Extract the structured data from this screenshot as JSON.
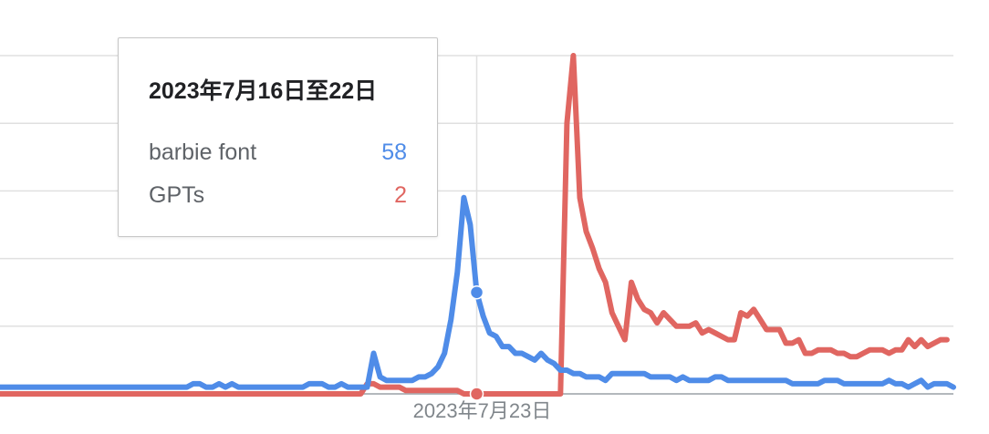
{
  "colors": {
    "background": "#ffffff",
    "gridline": "#e0e0e0",
    "axis": "#9aa0a6",
    "series_blue": "#4f8ce8",
    "series_red": "#e06661",
    "tooltip_border": "#c6c6c6",
    "tooltip_title": "#202124",
    "tooltip_text": "#5f6368"
  },
  "tooltip": {
    "title": "2023年7月16日至22日",
    "rows": [
      {
        "name": "barbie font",
        "value": "58",
        "color": "#4f8ce8"
      },
      {
        "name": "GPTs",
        "value": "2",
        "color": "#e06661"
      }
    ]
  },
  "chart_data": {
    "type": "line",
    "title": "",
    "xlabel": "",
    "ylabel": "",
    "x_tick_labels": [
      "2023年7月23日"
    ],
    "x_tick_index": 74,
    "ylim": [
      0,
      100
    ],
    "y_gridlines": [
      20,
      40,
      60,
      80,
      100
    ],
    "grid": true,
    "highlight_index": 74,
    "series": [
      {
        "name": "barbie font",
        "color": "#4f8ce8",
        "values": [
          2,
          2,
          2,
          2,
          2,
          2,
          2,
          2,
          2,
          2,
          2,
          2,
          2,
          2,
          2,
          2,
          2,
          2,
          2,
          2,
          2,
          2,
          2,
          2,
          2,
          2,
          2,
          2,
          2,
          2,
          3,
          3,
          2,
          2,
          3,
          2,
          3,
          2,
          2,
          2,
          2,
          2,
          2,
          2,
          2,
          2,
          2,
          2,
          3,
          3,
          3,
          2,
          2,
          3,
          2,
          2,
          2,
          2,
          12,
          5,
          4,
          4,
          4,
          4,
          4,
          5,
          5,
          6,
          8,
          12,
          22,
          36,
          58,
          50,
          30,
          23,
          18,
          17,
          14,
          14,
          12,
          12,
          11,
          10,
          12,
          10,
          9,
          7,
          7,
          6,
          6,
          5,
          5,
          5,
          4,
          6,
          6,
          6,
          6,
          6,
          6,
          5,
          5,
          5,
          5,
          4,
          5,
          4,
          4,
          4,
          4,
          5,
          5,
          4,
          4,
          4,
          4,
          4,
          4,
          4,
          4,
          4,
          4,
          3,
          3,
          3,
          3,
          3,
          4,
          4,
          4,
          3,
          3,
          3,
          3,
          3,
          3,
          3,
          4,
          3,
          3,
          2,
          3,
          4,
          2,
          3,
          3,
          3,
          2
        ]
      },
      {
        "name": "GPTs",
        "color": "#e06661",
        "values": [
          0,
          0,
          0,
          0,
          0,
          0,
          0,
          0,
          0,
          0,
          0,
          0,
          0,
          0,
          0,
          0,
          0,
          0,
          0,
          0,
          0,
          0,
          0,
          0,
          0,
          0,
          0,
          0,
          0,
          0,
          0,
          0,
          0,
          0,
          0,
          0,
          0,
          0,
          0,
          0,
          0,
          0,
          0,
          0,
          0,
          0,
          0,
          0,
          0,
          0,
          0,
          0,
          0,
          0,
          0,
          0,
          0,
          3,
          3,
          2,
          2,
          2,
          2,
          1,
          1,
          1,
          1,
          1,
          1,
          1,
          1,
          1,
          0,
          0,
          0,
          0,
          0,
          0,
          0,
          0,
          0,
          0,
          0,
          0,
          0,
          0,
          0,
          0,
          80,
          100,
          58,
          48,
          43,
          37,
          33,
          24,
          20,
          16,
          33,
          28,
          25,
          24,
          21,
          24,
          22,
          20,
          20,
          20,
          21,
          18,
          19,
          18,
          17,
          16,
          16,
          24,
          23,
          25,
          22,
          19,
          19,
          19,
          15,
          15,
          16,
          12,
          12,
          13,
          13,
          13,
          12,
          12,
          11,
          11,
          12,
          13,
          13,
          13,
          12,
          13,
          13,
          16,
          14,
          16,
          14,
          15,
          16,
          16
        ]
      }
    ]
  }
}
